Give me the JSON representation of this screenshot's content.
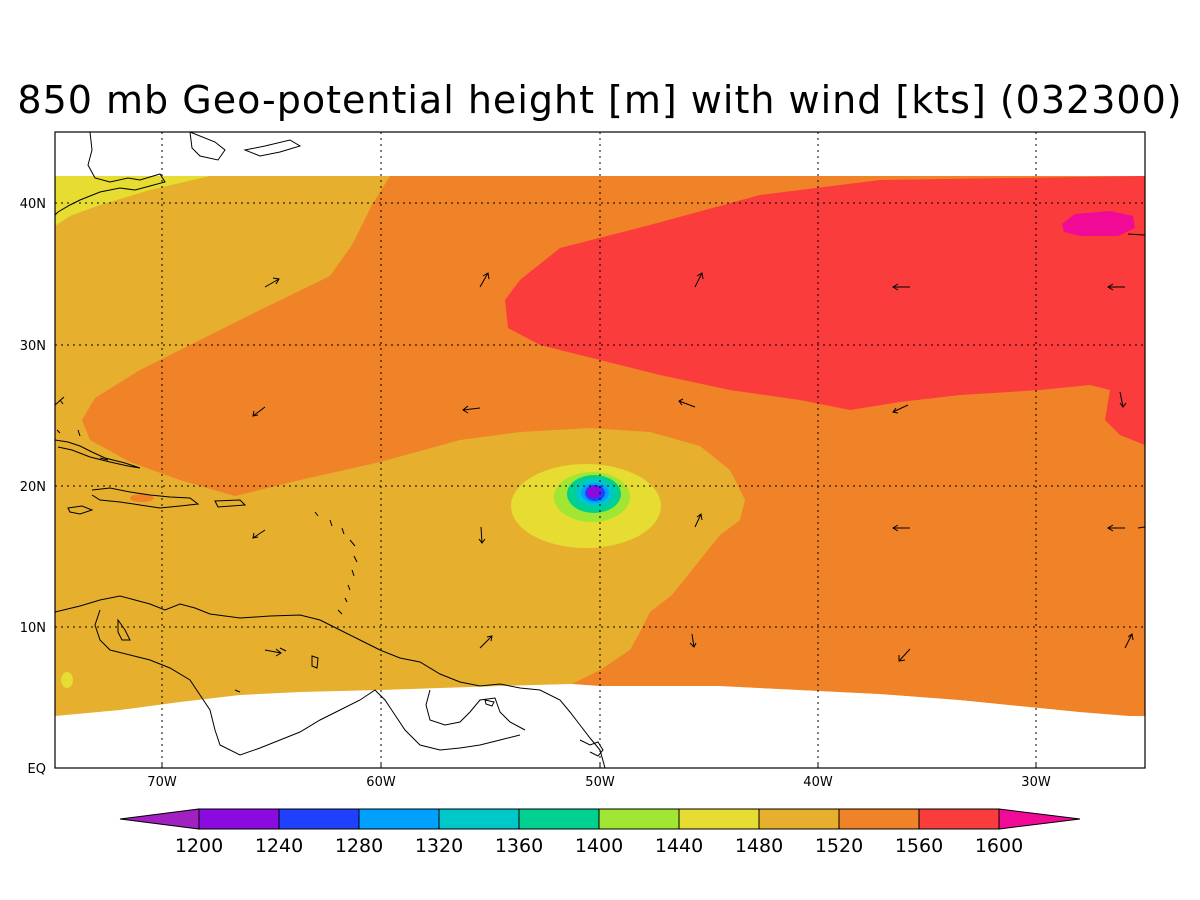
{
  "title": "850 mb Geo-potential height [m] with wind [kts] (032300)",
  "axes": {
    "x_ticks": [
      "70W",
      "60W",
      "50W",
      "40W",
      "30W"
    ],
    "y_ticks": [
      "EQ",
      "10N",
      "20N",
      "30N",
      "40N"
    ],
    "lon_range": [
      -75,
      -25
    ],
    "lat_range": [
      0,
      45
    ],
    "grid": "dotted"
  },
  "colorbar": {
    "labels": [
      "1200",
      "1240",
      "1280",
      "1320",
      "1360",
      "1400",
      "1440",
      "1480",
      "1520",
      "1560",
      "1600"
    ],
    "colors": [
      "#a020c0",
      "#8a0ae0",
      "#2040ff",
      "#00a0ff",
      "#00c8c8",
      "#00d090",
      "#a0e632",
      "#e6dc32",
      "#e6af2d",
      "#f08228",
      "#fa3c3c",
      "#f00a96"
    ]
  },
  "map_colors": {
    "1440": "#a0e632",
    "1480": "#e6dc32",
    "1520": "#e6af2d",
    "1560": "#f08228",
    "1600": "#fa3c3c",
    "1640": "#f00a96",
    "low_core": "#8a0ae0",
    "low_ring_blue": "#00a0ff",
    "low_ring_cyan": "#00c8c8",
    "low_ring_green": "#00d090"
  },
  "features": {
    "low_center": {
      "lon": -50.3,
      "lat": 19.6
    },
    "high_center": {
      "lon": -27.5,
      "lat": 38.4
    }
  }
}
